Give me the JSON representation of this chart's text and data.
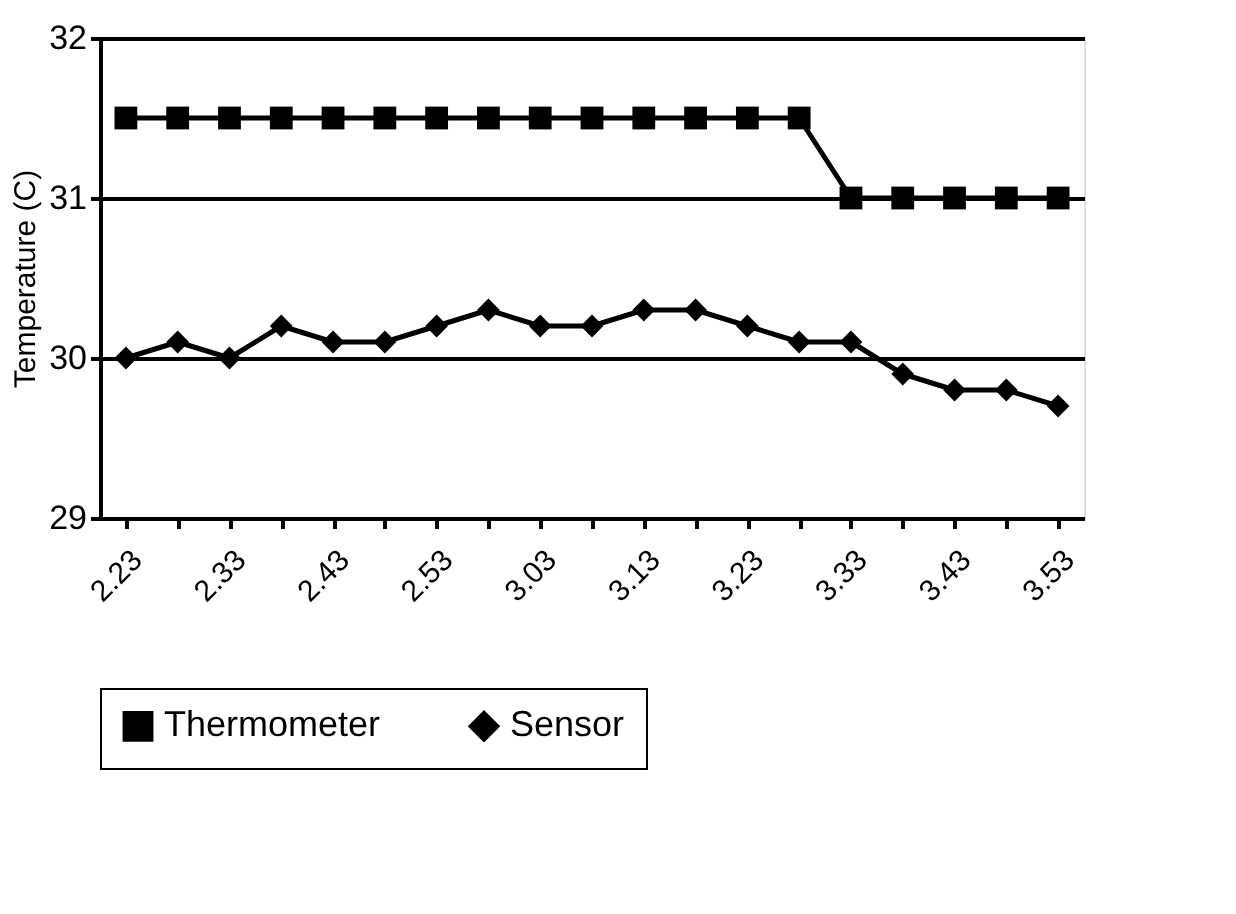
{
  "chart_data": {
    "type": "line",
    "ylabel": "Temperature (C)",
    "categories": [
      "2.23",
      null,
      "2.33",
      null,
      "2.43",
      null,
      "2.53",
      null,
      "3.03",
      null,
      "3.13",
      null,
      "3.23",
      null,
      "3.33",
      null,
      "3.43",
      null,
      "3.53"
    ],
    "series": [
      {
        "name": "Thermometer",
        "color": "#000000",
        "marker": "square",
        "values": [
          31.5,
          31.5,
          31.5,
          31.5,
          31.5,
          31.5,
          31.5,
          31.5,
          31.5,
          31.5,
          31.5,
          31.5,
          31.5,
          31.5,
          31,
          31,
          31,
          31,
          31
        ]
      },
      {
        "name": "Sensor",
        "color": "#000000",
        "marker": "diamond",
        "values": [
          30.0,
          30.1,
          30.0,
          30.2,
          30.1,
          30.1,
          30.2,
          30.3,
          30.2,
          30.2,
          30.3,
          30.3,
          30.2,
          30.1,
          30.1,
          29.9,
          29.8,
          29.8,
          29.7
        ]
      }
    ],
    "ylim": [
      29,
      32
    ],
    "yticks": [
      29,
      30,
      31,
      32
    ],
    "grid": "y",
    "legend": "bottom",
    "line_style": "solid"
  }
}
